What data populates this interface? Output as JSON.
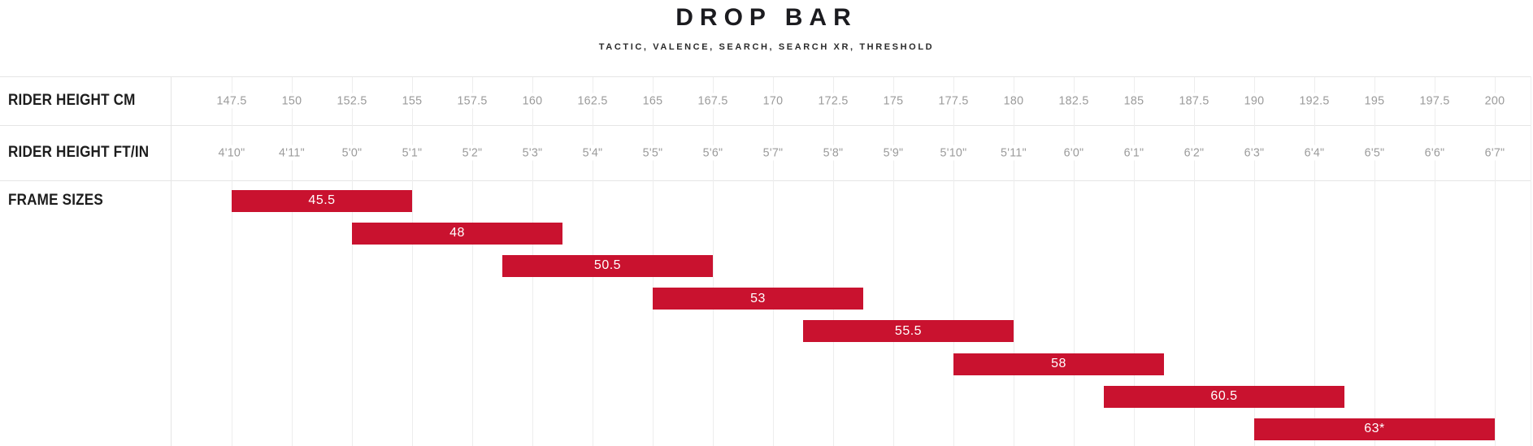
{
  "header": {
    "title": "DROP BAR",
    "subtitle": "TACTIC, VALENCE, SEARCH, SEARCH XR, THRESHOLD"
  },
  "table": {
    "row_labels": {
      "cm": "RIDER HEIGHT CM",
      "ftin": "RIDER HEIGHT FT/IN",
      "frames": "FRAME SIZES"
    }
  },
  "chart_data": {
    "type": "bar",
    "orientation": "horizontal-range",
    "title": "DROP BAR",
    "subtitle": "TACTIC, VALENCE, SEARCH, SEARCH XR, THRESHOLD",
    "x_axis": {
      "label_cm": "RIDER HEIGHT CM",
      "label_ftin": "RIDER HEIGHT FT/IN",
      "cm_ticks": [
        147.5,
        150,
        152.5,
        155,
        157.5,
        160,
        162.5,
        165,
        167.5,
        170,
        172.5,
        175,
        177.5,
        180,
        182.5,
        185,
        187.5,
        190,
        192.5,
        195,
        197.5,
        200
      ],
      "ftin_ticks": [
        "4'10\"",
        "4'11\"",
        "5'0\"",
        "5'1\"",
        "5'2\"",
        "5'3\"",
        "5'4\"",
        "5'5\"",
        "5'6\"",
        "5'7\"",
        "5'8\"",
        "5'9\"",
        "5'10\"",
        "5'11\"",
        "6'0\"",
        "6'1\"",
        "6'2\"",
        "6'3\"",
        "6'4\"",
        "6'5\"",
        "6'6\"",
        "6'7\""
      ],
      "range_cm": [
        147.5,
        200
      ],
      "tick_step_cm": 2.5
    },
    "series_label": "FRAME SIZES",
    "series": [
      {
        "label": "45.5",
        "start_cm": 147.5,
        "end_cm": 155
      },
      {
        "label": "48",
        "start_cm": 152.5,
        "end_cm": 161.25
      },
      {
        "label": "50.5",
        "start_cm": 158.75,
        "end_cm": 167.5
      },
      {
        "label": "53",
        "start_cm": 165,
        "end_cm": 173.75
      },
      {
        "label": "55.5",
        "start_cm": 171.25,
        "end_cm": 180
      },
      {
        "label": "58",
        "start_cm": 177.5,
        "end_cm": 186.25
      },
      {
        "label": "60.5",
        "start_cm": 183.75,
        "end_cm": 193.75
      },
      {
        "label": "63*",
        "start_cm": 190,
        "end_cm": 200
      }
    ],
    "colors": {
      "bar": "#C9122F",
      "bar_label": "#FFFFFF",
      "tick_text": "#9B9B9B",
      "row_label_text": "#1D1D1D",
      "gridline": "#EDEDED",
      "separator": "#E5E5E5"
    },
    "layout_hints": {
      "grid": true,
      "legend": false,
      "tick_labels_centered_on_gridlines": true
    }
  }
}
